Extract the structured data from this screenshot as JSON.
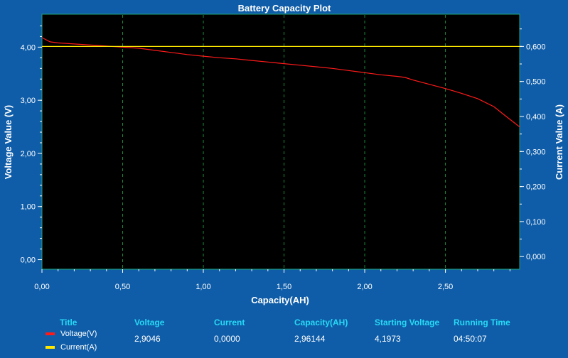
{
  "chart_data": {
    "type": "line",
    "title": "Battery Capacity Plot",
    "xlabel": "Capacity(AH)",
    "ylabel": "Voltage Value (V)",
    "y2label": "Current Value (A)",
    "xlim": [
      0,
      2.96
    ],
    "ylim": [
      -0.18,
      4.62
    ],
    "y2lim": [
      -0.036,
      0.692
    ],
    "x_ticks": [
      "0,00",
      "0,50",
      "1,00",
      "1,50",
      "2,00",
      "2,50"
    ],
    "x_tick_values": [
      0,
      0.5,
      1.0,
      1.5,
      2.0,
      2.5
    ],
    "y_ticks": [
      "0,00",
      "1,00",
      "2,00",
      "3,00",
      "4,00"
    ],
    "y_tick_values": [
      0,
      1,
      2,
      3,
      4
    ],
    "y2_ticks": [
      "0,000",
      "0,100",
      "0,200",
      "0,300",
      "0,400",
      "0,500",
      "0,600"
    ],
    "y2_tick_values": [
      0,
      0.1,
      0.2,
      0.3,
      0.4,
      0.5,
      0.6
    ],
    "grid": "vertical-dashed",
    "series": [
      {
        "name": "Voltage(V)",
        "axis": "left",
        "color": "#ff1a1a",
        "x": [
          0,
          0.05,
          0.1,
          0.2,
          0.3,
          0.4,
          0.5,
          0.6,
          0.7,
          0.8,
          0.9,
          1.0,
          1.1,
          1.2,
          1.3,
          1.4,
          1.5,
          1.6,
          1.7,
          1.8,
          1.9,
          2.0,
          2.1,
          2.2,
          2.25,
          2.3,
          2.4,
          2.5,
          2.6,
          2.7,
          2.8,
          2.85,
          2.9,
          2.96
        ],
        "y": [
          4.18,
          4.1,
          4.08,
          4.06,
          4.04,
          4.02,
          4.0,
          3.98,
          3.94,
          3.9,
          3.86,
          3.83,
          3.8,
          3.78,
          3.75,
          3.72,
          3.69,
          3.66,
          3.63,
          3.6,
          3.56,
          3.52,
          3.48,
          3.45,
          3.43,
          3.38,
          3.3,
          3.22,
          3.13,
          3.03,
          2.88,
          2.76,
          2.64,
          2.5
        ]
      },
      {
        "name": "Current(A)",
        "axis": "right",
        "color": "#ffe800",
        "x": [
          0,
          2.96
        ],
        "y": [
          0.6,
          0.6
        ]
      }
    ]
  },
  "info": {
    "headers": {
      "title": "Title",
      "voltage": "Voltage",
      "current": "Current",
      "capacity": "Capacity(AH)",
      "starting_voltage": "Starting Voltage",
      "running_time": "Running Time"
    },
    "values": {
      "voltage": "2,9046",
      "current": "0,0000",
      "capacity": "2,96144",
      "starting_voltage": "4,1973",
      "running_time": "04:50:07"
    },
    "legend": [
      {
        "label": "Voltage(V)",
        "color": "#ff1a1a"
      },
      {
        "label": "Current(A)",
        "color": "#ffe800"
      }
    ]
  }
}
